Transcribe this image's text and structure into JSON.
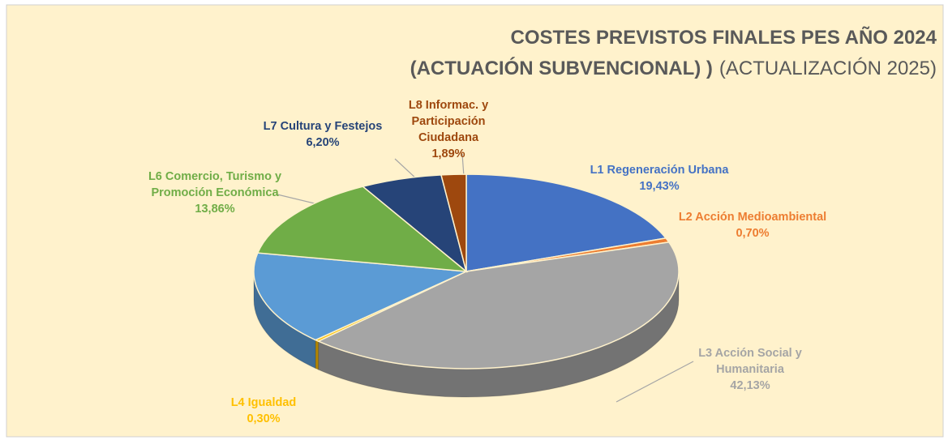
{
  "chart_data": {
    "type": "pie3d",
    "title": [
      "COSTES PREVISTOS FINALES PES AÑO 2024",
      "(ACTUACIÓN SUBVENCIONAL) )",
      "(ACTUALIZACIÓN 2025)"
    ],
    "categories": [
      "L1 Regeneración Urbana",
      "L2 Acción Medioambiental",
      "L3 Acción Social y Humanitaria",
      "L4 Igualdad",
      null,
      "L6 Comercio, Turismo y Promoción Económica",
      "L7 Cultura y Festejos",
      "L8 Informac. y Participación Ciudadana"
    ],
    "values": [
      19.43,
      0.7,
      42.13,
      0.3,
      15.49,
      13.86,
      6.2,
      1.89
    ],
    "value_labels": [
      "19,43%",
      "0,70%",
      "42,13%",
      "0,30%",
      null,
      "13,86%",
      "6,20%",
      "1,89%"
    ],
    "colors": [
      "#4472c4",
      "#ed7d31",
      "#a5a5a5",
      "#ffc000",
      "#5b9bd5",
      "#70ad47",
      "#264478",
      "#9e480e"
    ]
  }
}
